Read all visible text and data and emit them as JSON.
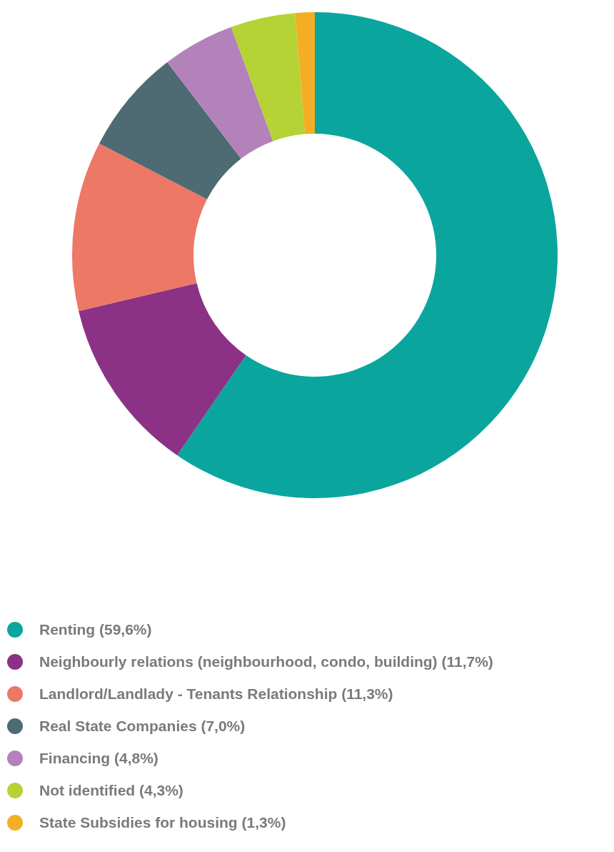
{
  "chart_data": {
    "type": "donut",
    "categories": [
      "Renting",
      "Neighbourly relations (neighbourhood, condo, building)",
      "Landlord/Landlady - Tenants Relationship",
      "Real State Companies",
      "Financing",
      "Not identified",
      "State Subsidies for housing"
    ],
    "values": [
      59.6,
      11.7,
      11.3,
      7.0,
      4.8,
      4.3,
      1.3
    ],
    "value_labels": [
      "(59,6%)",
      "(11,7%)",
      "(11,3%)",
      "(7,0%)",
      "(4,8%)",
      "(4,3%)",
      "(1,3%)"
    ],
    "colors": [
      "#0aa69e",
      "#8b3186",
      "#ec7865",
      "#4e6a73",
      "#b482bb",
      "#b5d334",
      "#f3ae23"
    ],
    "legend": "bottom"
  }
}
